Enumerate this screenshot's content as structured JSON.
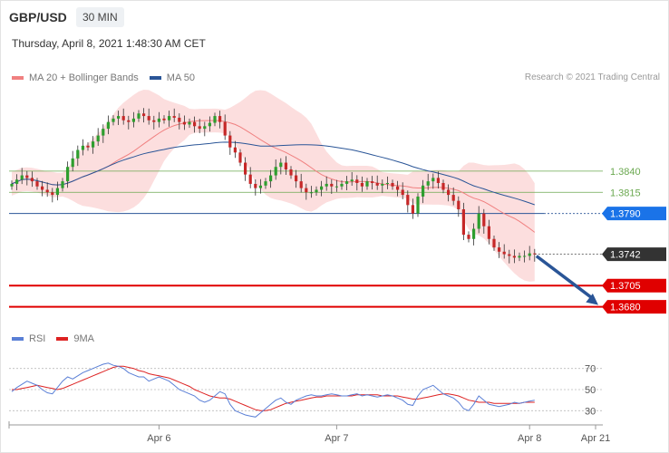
{
  "header": {
    "pair": "GBP/USD",
    "timeframe": "30 MIN",
    "datetime": "Thursday, April 8, 2021 1:48:30 AM CET"
  },
  "legend": {
    "items": [
      {
        "label": "MA 20 + Bollinger Bands",
        "color": "#f08080"
      },
      {
        "label": "MA 50",
        "color": "#2a5597"
      }
    ],
    "credit": "Research © 2021 Trading Central"
  },
  "rsi_legend": {
    "items": [
      {
        "label": "RSI",
        "color": "#5a7fd6"
      },
      {
        "label": "9MA",
        "color": "#dd2222"
      }
    ]
  },
  "chart_data": [
    {
      "type": "candlestick",
      "title": "",
      "ylim": [
        1.3655,
        1.3935
      ],
      "x_ticks": [
        {
          "label": "Apr 6",
          "i": 29
        },
        {
          "label": "Apr 7",
          "i": 64
        },
        {
          "label": "Apr 8",
          "i": 102
        },
        {
          "label": "Apr 21",
          "i": 115
        }
      ],
      "levels": [
        {
          "value": "1.3840",
          "style": "green-line",
          "color": "#6aa84f"
        },
        {
          "value": "1.3815",
          "style": "green-line",
          "color": "#6aa84f"
        },
        {
          "value": "1.3790",
          "style": "blue-tag",
          "color": "#1a73e8"
        },
        {
          "value": "1.3742",
          "style": "current-price",
          "color": "#333333"
        },
        {
          "value": "1.3705",
          "style": "red-tag",
          "color": "#e00000"
        },
        {
          "value": "1.3680",
          "style": "red-tag",
          "color": "#e00000"
        }
      ],
      "close": [
        1.3825,
        1.383,
        1.3835,
        1.3832,
        1.3828,
        1.3822,
        1.3818,
        1.3815,
        1.3812,
        1.382,
        1.3828,
        1.3845,
        1.3855,
        1.3865,
        1.387,
        1.3868,
        1.3875,
        1.3882,
        1.389,
        1.3898,
        1.3902,
        1.3905,
        1.39,
        1.3898,
        1.3902,
        1.3908,
        1.3905,
        1.39,
        1.3898,
        1.3902,
        1.39,
        1.3905,
        1.3903,
        1.3898,
        1.3895,
        1.3898,
        1.3893,
        1.389,
        1.3893,
        1.3897,
        1.3905,
        1.3898,
        1.3882,
        1.3868,
        1.3862,
        1.385,
        1.3836,
        1.3825,
        1.382,
        1.3823,
        1.3828,
        1.3835,
        1.3845,
        1.385,
        1.3842,
        1.3835,
        1.3828,
        1.382,
        1.3815,
        1.3815,
        1.3818,
        1.3822,
        1.3825,
        1.3822,
        1.3822,
        1.3825,
        1.3828,
        1.383,
        1.3826,
        1.3822,
        1.3828,
        1.3826,
        1.3823,
        1.3825,
        1.3826,
        1.3822,
        1.3818,
        1.3812,
        1.38,
        1.379,
        1.381,
        1.3823,
        1.3828,
        1.3832,
        1.3826,
        1.3818,
        1.3812,
        1.3805,
        1.3795,
        1.3765,
        1.376,
        1.3772,
        1.379,
        1.3775,
        1.376,
        1.375,
        1.3745,
        1.3742,
        1.374,
        1.3738,
        1.374,
        1.374,
        1.3743,
        1.3742
      ],
      "rsi": {
        "ylim": [
          20,
          80
        ],
        "ticks": [
          "70",
          "50",
          "30"
        ],
        "rsi": [
          48,
          52,
          55,
          58,
          56,
          54,
          50,
          47,
          46,
          52,
          58,
          62,
          60,
          63,
          66,
          68,
          70,
          72,
          74,
          75,
          73,
          72,
          70,
          66,
          64,
          62,
          62,
          58,
          60,
          62,
          60,
          58,
          54,
          50,
          48,
          46,
          44,
          40,
          38,
          40,
          44,
          48,
          46,
          36,
          30,
          28,
          26,
          25,
          24,
          28,
          32,
          36,
          40,
          42,
          38,
          36,
          40,
          42,
          44,
          45,
          44,
          44,
          45,
          46,
          45,
          44,
          44,
          45,
          46,
          44,
          45,
          44,
          43,
          44,
          45,
          44,
          42,
          40,
          36,
          35,
          44,
          50,
          52,
          54,
          50,
          46,
          44,
          42,
          38,
          32,
          30,
          36,
          44,
          40,
          36,
          35,
          34,
          35,
          36,
          38,
          37,
          38,
          39,
          40
        ],
        "ma": [
          50,
          50,
          51,
          52,
          53,
          54,
          53,
          52,
          51,
          50,
          51,
          53,
          55,
          57,
          59,
          61,
          63,
          65,
          67,
          69,
          71,
          72,
          72,
          71,
          70,
          68,
          67,
          65,
          64,
          63,
          62,
          61,
          59,
          57,
          55,
          53,
          50,
          48,
          46,
          44,
          43,
          42,
          42,
          41,
          39,
          37,
          35,
          33,
          31,
          30,
          30,
          31,
          33,
          35,
          37,
          38,
          39,
          40,
          41,
          42,
          43,
          43,
          44,
          44,
          44,
          44,
          44,
          44,
          45,
          45,
          45,
          45,
          45,
          44,
          44,
          44,
          44,
          43,
          42,
          41,
          41,
          42,
          43,
          44,
          45,
          46,
          46,
          45,
          44,
          42,
          40,
          39,
          38,
          38,
          38,
          37,
          37,
          37,
          37,
          37,
          37,
          38,
          38,
          38
        ]
      }
    }
  ]
}
